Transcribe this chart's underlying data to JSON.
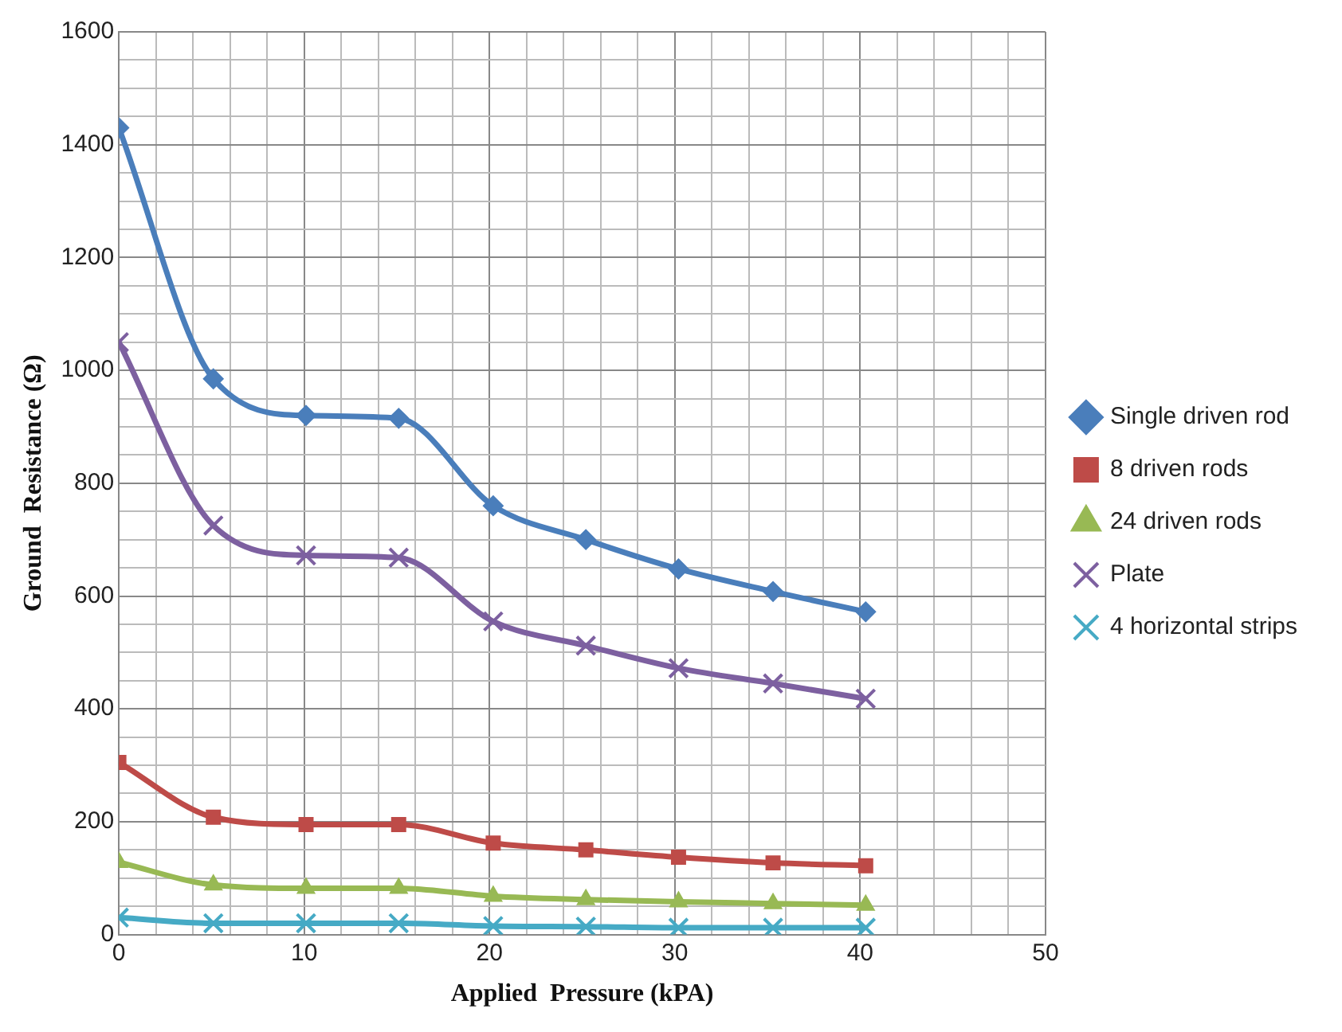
{
  "chart_data": {
    "type": "line",
    "xlabel": "Applied  Pressure (kPA)",
    "ylabel": "Ground  Resistance (Ω)",
    "x": [
      0,
      5.1,
      10.1,
      15.1,
      20.2,
      25.2,
      30.2,
      35.3,
      40.3
    ],
    "series": [
      {
        "name": "Single driven rod",
        "color": "#4a7ebb",
        "marker": "diamond",
        "values": [
          1430,
          985,
          920,
          915,
          760,
          700,
          648,
          608,
          572
        ]
      },
      {
        "name": "8 driven rods",
        "color": "#be4b48",
        "marker": "square",
        "values": [
          305,
          208,
          195,
          195,
          162,
          150,
          137,
          127,
          122
        ]
      },
      {
        "name": "24 driven rods",
        "color": "#98b954",
        "marker": "triangle",
        "values": [
          128,
          88,
          82,
          82,
          68,
          62,
          58,
          55,
          52
        ]
      },
      {
        "name": "Plate",
        "color": "#7d60a0",
        "marker": "cross",
        "values": [
          1050,
          725,
          672,
          668,
          555,
          512,
          472,
          445,
          418
        ]
      },
      {
        "name": "4 horizontal strips",
        "color": "#46aac5",
        "marker": "cross",
        "values": [
          30,
          20,
          20,
          20,
          15,
          14,
          12,
          12,
          12
        ]
      }
    ],
    "xlim": [
      0,
      50
    ],
    "xticks": [
      0,
      {
        "value": 2,
        "label": null
      },
      {
        "value": 4,
        "label": null
      },
      {
        "value": 6,
        "label": null
      },
      {
        "value": 8,
        "label": null
      },
      10,
      {
        "value": 12,
        "label": null
      },
      {
        "value": 14,
        "label": null
      },
      {
        "value": 16,
        "label": null
      },
      {
        "value": 18,
        "label": null
      },
      20,
      {
        "value": 22,
        "label": null
      },
      {
        "value": 24,
        "label": null
      },
      {
        "value": 26,
        "label": null
      },
      {
        "value": 28,
        "label": null
      },
      30,
      {
        "value": 32,
        "label": null
      },
      {
        "value": 34,
        "label": null
      },
      {
        "value": 36,
        "label": null
      },
      {
        "value": 38,
        "label": null
      },
      40,
      {
        "value": 42,
        "label": null
      },
      {
        "value": 44,
        "label": null
      },
      {
        "value": 46,
        "label": null
      },
      {
        "value": 48,
        "label": null
      },
      50
    ],
    "ylim": [
      0,
      1600
    ],
    "yticks": [
      0,
      {
        "value": 50,
        "label": null
      },
      {
        "value": 100,
        "label": null
      },
      {
        "value": 150,
        "label": null
      },
      200,
      {
        "value": 250,
        "label": null
      },
      {
        "value": 300,
        "label": null
      },
      {
        "value": 350,
        "label": null
      },
      400,
      {
        "value": 450,
        "label": null
      },
      {
        "value": 500,
        "label": null
      },
      {
        "value": 550,
        "label": null
      },
      600,
      {
        "value": 650,
        "label": null
      },
      {
        "value": 700,
        "label": null
      },
      {
        "value": 750,
        "label": null
      },
      800,
      {
        "value": 850,
        "label": null
      },
      {
        "value": 900,
        "label": null
      },
      {
        "value": 950,
        "label": null
      },
      1000,
      {
        "value": 1050,
        "label": null
      },
      {
        "value": 1100,
        "label": null
      },
      {
        "value": 1150,
        "label": null
      },
      1200,
      {
        "value": 1250,
        "label": null
      },
      {
        "value": 1300,
        "label": null
      },
      {
        "value": 1350,
        "label": null
      },
      1400,
      {
        "value": 1450,
        "label": null
      },
      {
        "value": 1500,
        "label": null
      },
      {
        "value": 1550,
        "label": null
      },
      1600
    ],
    "grid": true,
    "legend": "right",
    "line_style": "solid"
  }
}
